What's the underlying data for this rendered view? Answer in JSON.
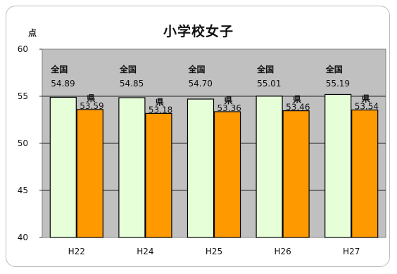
{
  "chart_data": {
    "type": "bar",
    "title": "小学校女子",
    "unit_label": "点",
    "categories": [
      "H22",
      "H24",
      "H25",
      "H26",
      "H27"
    ],
    "series": [
      {
        "name": "全国",
        "values": [
          54.89,
          54.85,
          54.7,
          55.01,
          55.19
        ],
        "color": "#e6ffd9"
      },
      {
        "name": "県",
        "values": [
          53.59,
          53.18,
          53.36,
          53.46,
          53.54
        ],
        "color": "#ff9900"
      }
    ],
    "value_labels": {
      "全国": [
        "54.89",
        "54.85",
        "54.70",
        "55.01",
        "55.19"
      ],
      "県": [
        "53.59",
        "53.18",
        "53.36",
        "53.46",
        "53.54"
      ]
    },
    "yticks": [
      40,
      45,
      50,
      55,
      60
    ],
    "ylim": [
      40,
      60
    ],
    "plot_background": "#c0c0c0",
    "grid": true
  }
}
